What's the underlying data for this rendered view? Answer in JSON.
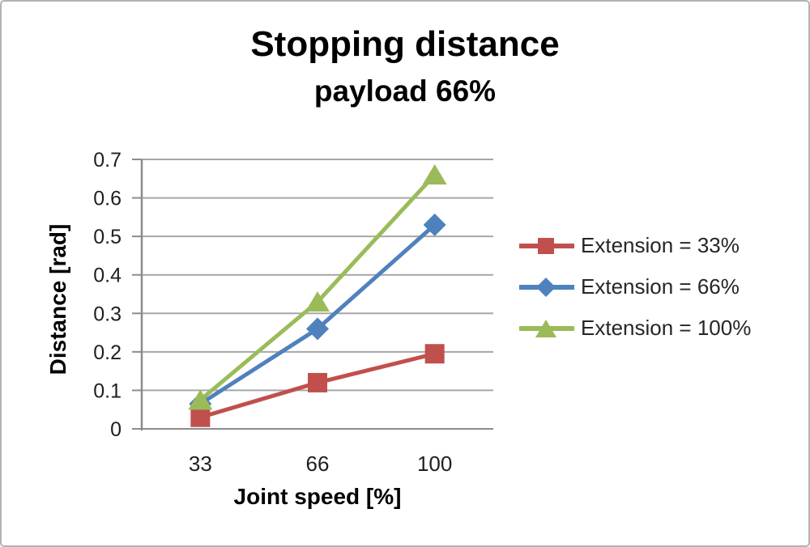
{
  "chart_data": {
    "type": "line",
    "title": "Stopping distance",
    "subtitle": "payload 66%",
    "xlabel": "Joint speed [%]",
    "ylabel": "Distance [rad]",
    "categories": [
      33,
      66,
      100
    ],
    "x_tick_labels": [
      "33",
      "66",
      "100"
    ],
    "y_tick_labels": [
      "0",
      "0.1",
      "0.2",
      "0.3",
      "0.4",
      "0.5",
      "0.6",
      "0.7"
    ],
    "ylim": [
      0,
      0.7
    ],
    "grid": true,
    "legend_position": "right",
    "series": [
      {
        "name": "Extension = 33%",
        "color": "#c0504d",
        "marker": "square",
        "values": [
          0.03,
          0.12,
          0.195
        ]
      },
      {
        "name": "Extension = 66%",
        "color": "#4f81bd",
        "marker": "diamond",
        "values": [
          0.065,
          0.26,
          0.53
        ]
      },
      {
        "name": "Extension = 100%",
        "color": "#9bbb59",
        "marker": "triangle",
        "values": [
          0.075,
          0.33,
          0.66
        ]
      }
    ],
    "colors": {
      "gridline": "#a6a6a6",
      "axis": "#8c8c8c",
      "tick_text": "#1f1f1f",
      "legend_text": "#262626"
    }
  }
}
